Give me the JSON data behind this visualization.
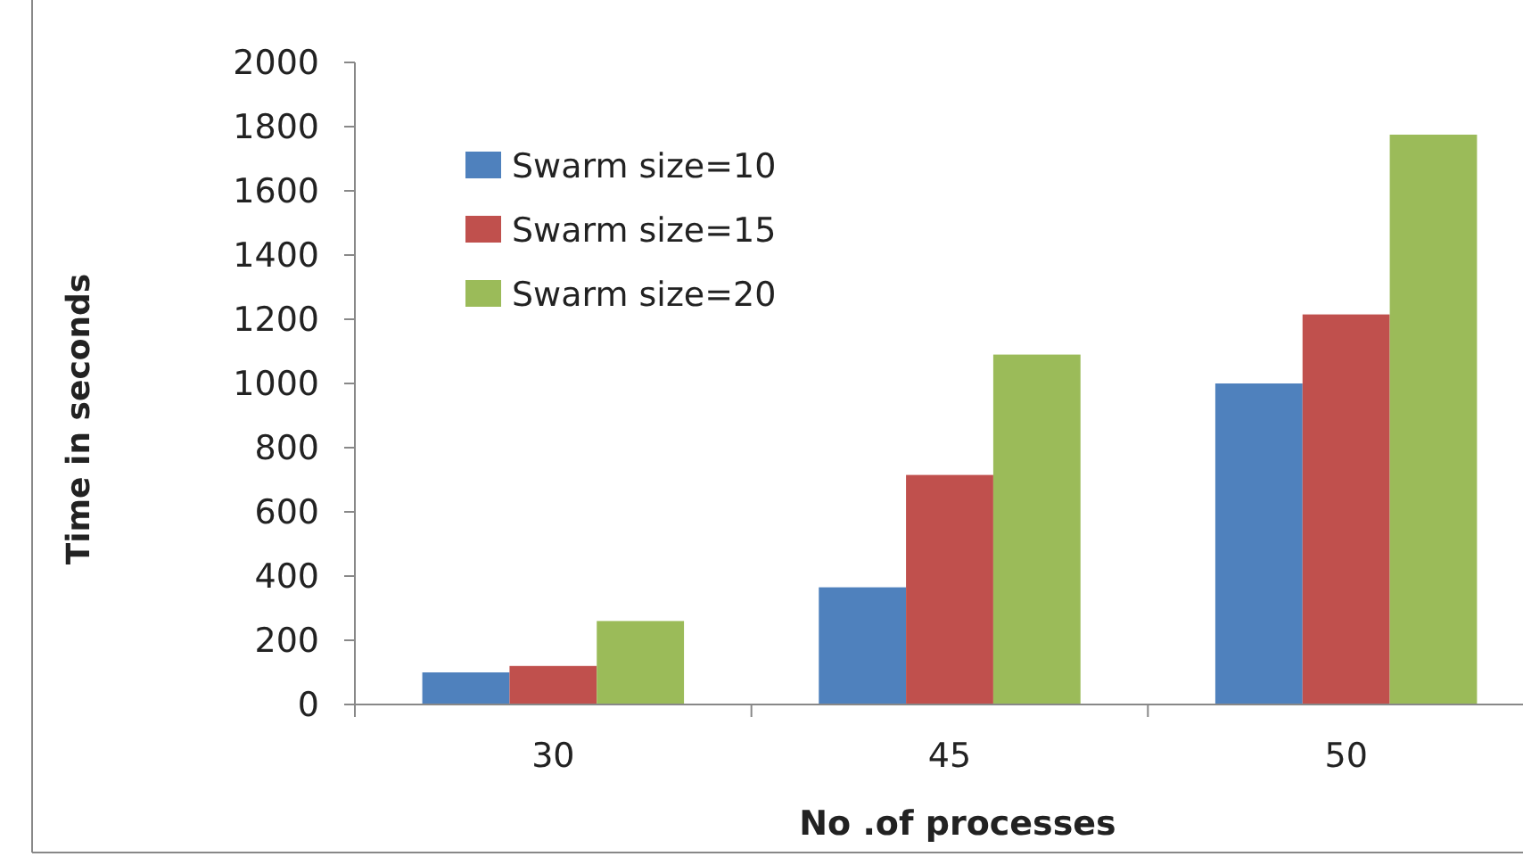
{
  "chart_data": {
    "type": "bar",
    "xlabel": "No .of processes",
    "ylabel": "Time in seconds",
    "categories": [
      "30",
      "45",
      "50"
    ],
    "series": [
      {
        "name": "Swarm size=10",
        "color": "#4f81bd",
        "values": [
          100,
          365,
          1000
        ]
      },
      {
        "name": "Swarm size=15",
        "color": "#c0504d",
        "values": [
          120,
          715,
          1215
        ]
      },
      {
        "name": "Swarm size=20",
        "color": "#9bbb59",
        "values": [
          260,
          1090,
          1775
        ]
      }
    ],
    "ylim": [
      0,
      2000
    ],
    "yticks": [
      0,
      200,
      400,
      600,
      800,
      1000,
      1200,
      1400,
      1600,
      1800,
      2000
    ],
    "grid": false,
    "legend": "top left"
  }
}
